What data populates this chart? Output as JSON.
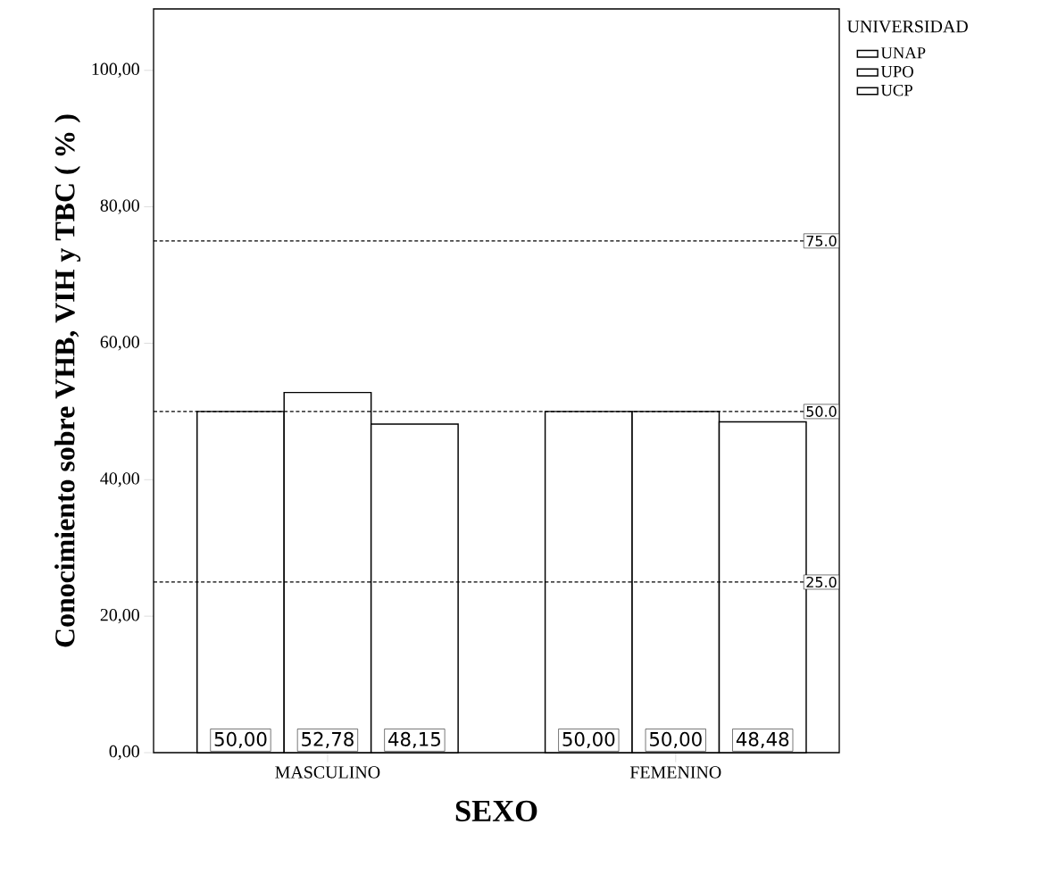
{
  "chart_data": {
    "type": "bar",
    "xlabel": "SEXO",
    "ylabel": "Conocimiento sobre VHB, VIH y TBC ( % )",
    "legend_title": "UNIVERSIDAD",
    "legend": "top right",
    "categories": [
      "MASCULINO",
      "FEMENINO"
    ],
    "series": [
      {
        "name": "UNAP",
        "color": "#ffffff",
        "values": [
          50.0,
          50.0
        ],
        "value_labels": [
          "50,00",
          "50,00"
        ]
      },
      {
        "name": "UPO",
        "color": "#ffffff",
        "values": [
          52.78,
          50.0
        ],
        "value_labels": [
          "52,78",
          "50,00"
        ]
      },
      {
        "name": "UCP",
        "color": "#ffffff",
        "values": [
          48.15,
          48.48
        ],
        "value_labels": [
          "48,15",
          "48,48"
        ]
      }
    ],
    "ylim": [
      0,
      109
    ],
    "yticks": [
      {
        "value": 0,
        "label": "0,00"
      },
      {
        "value": 20,
        "label": "20,00"
      },
      {
        "value": 40,
        "label": "40,00"
      },
      {
        "value": 60,
        "label": "60,00"
      },
      {
        "value": 80,
        "label": "80,00"
      },
      {
        "value": 100,
        "label": "100,00"
      }
    ],
    "ref_lines": [
      {
        "axis": "y",
        "value": 75,
        "label": "75.0",
        "line_style": "dashed"
      },
      {
        "axis": "y",
        "value": 50,
        "label": "50.0",
        "line_style": "dashed"
      },
      {
        "axis": "y",
        "value": 25,
        "label": "25.0",
        "line_style": "dashed"
      }
    ]
  }
}
